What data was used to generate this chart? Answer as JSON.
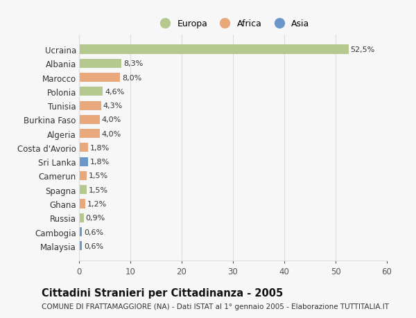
{
  "categories": [
    "Ucraina",
    "Albania",
    "Marocco",
    "Polonia",
    "Tunisia",
    "Burkina Faso",
    "Algeria",
    "Costa d'Avorio",
    "Sri Lanka",
    "Camerun",
    "Spagna",
    "Ghana",
    "Russia",
    "Cambogia",
    "Malaysia"
  ],
  "values": [
    52.5,
    8.3,
    8.0,
    4.6,
    4.3,
    4.0,
    4.0,
    1.8,
    1.8,
    1.5,
    1.5,
    1.2,
    0.9,
    0.6,
    0.6
  ],
  "labels": [
    "52,5%",
    "8,3%",
    "8,0%",
    "4,6%",
    "4,3%",
    "4,0%",
    "4,0%",
    "1,8%",
    "1,8%",
    "1,5%",
    "1,5%",
    "1,2%",
    "0,9%",
    "0,6%",
    "0,6%"
  ],
  "continent": [
    "Europa",
    "Europa",
    "Africa",
    "Europa",
    "Africa",
    "Africa",
    "Africa",
    "Africa",
    "Asia",
    "Africa",
    "Europa",
    "Africa",
    "Europa",
    "Asia",
    "Asia"
  ],
  "colors": {
    "Europa": "#b5c98e",
    "Africa": "#e8a87c",
    "Asia": "#6b96c8"
  },
  "xlim": [
    0,
    60
  ],
  "xticks": [
    0,
    10,
    20,
    30,
    40,
    50,
    60
  ],
  "title": "Cittadini Stranieri per Cittadinanza - 2005",
  "subtitle": "COMUNE DI FRATTAMAGGIORE (NA) - Dati ISTAT al 1° gennaio 2005 - Elaborazione TUTTITALIA.IT",
  "bg_color": "#f7f7f7",
  "grid_color": "#dddddd",
  "label_fontsize": 8,
  "ytick_fontsize": 8.5,
  "xtick_fontsize": 8.5,
  "title_fontsize": 10.5,
  "subtitle_fontsize": 7.5,
  "bar_height": 0.65
}
